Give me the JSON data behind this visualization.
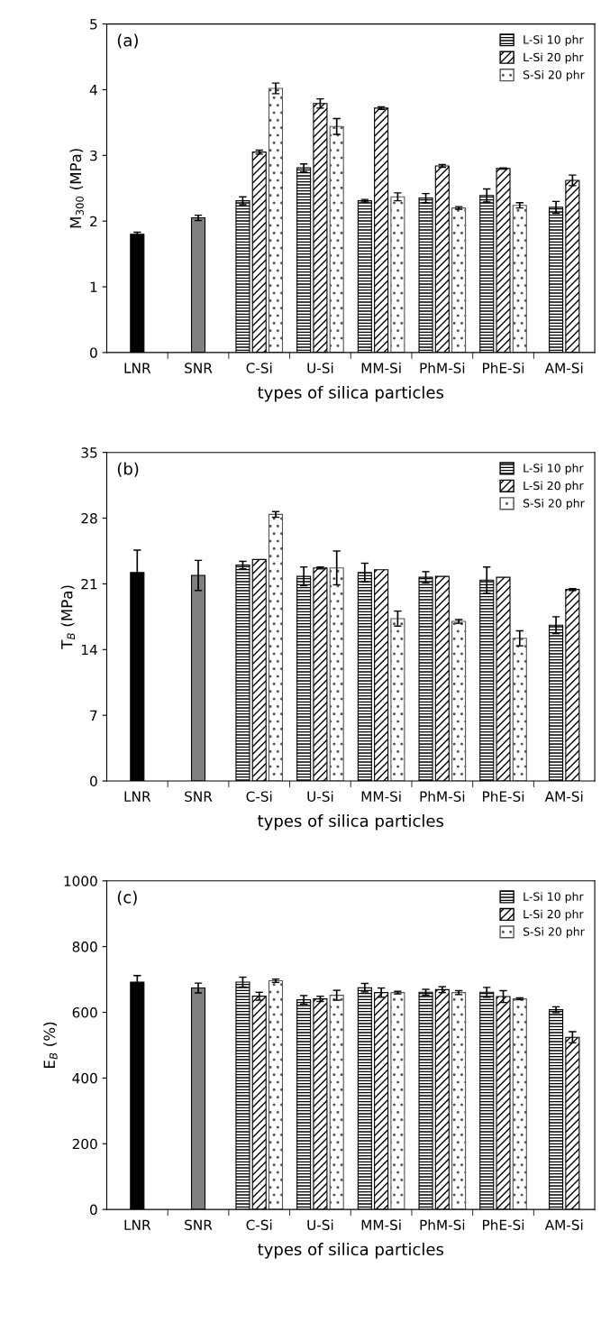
{
  "chart_data": [
    {
      "type": "bar",
      "ylabel": "M$_{300}$ (MPa)",
      "xlabel": "types of silica particles",
      "annotations": [
        "(a)"
      ],
      "categories": [
        "LNR",
        "SNR",
        "C-Si",
        "U-Si",
        "MM-Si",
        "PhM-Si",
        "PhE-Si",
        "AM-Si"
      ],
      "ylim": [
        0,
        5
      ],
      "yticks": [
        0,
        1,
        2,
        3,
        4,
        5
      ],
      "grid": false,
      "legend": "top right",
      "series": [
        {
          "colors": [
            "#000000",
            "#808080",
            null,
            null,
            null,
            null,
            null,
            null
          ],
          "values": [
            1.8,
            2.05,
            null,
            null,
            null,
            null,
            null,
            null
          ],
          "errors": [
            0.03,
            0.04,
            null,
            null,
            null,
            null,
            null,
            null
          ]
        },
        {
          "name": "L-Si 10 phr",
          "color": "#000000",
          "values": [
            null,
            null,
            2.31,
            2.81,
            2.31,
            2.35,
            2.39,
            2.21
          ],
          "errors": [
            null,
            null,
            0.06,
            0.06,
            0.02,
            0.07,
            0.1,
            0.09
          ]
        },
        {
          "name": "L-Si 20 phr",
          "color": "#000000",
          "values": [
            null,
            null,
            3.05,
            3.79,
            3.72,
            2.84,
            2.8,
            2.62
          ],
          "errors": [
            null,
            null,
            0.03,
            0.07,
            0.02,
            0.02,
            0.01,
            0.08
          ]
        },
        {
          "name": "S-Si 20 phr",
          "color": "#555555",
          "values": [
            null,
            null,
            4.02,
            3.44,
            2.37,
            2.2,
            2.24,
            null
          ],
          "errors": [
            null,
            null,
            0.08,
            0.12,
            0.06,
            0.02,
            0.04,
            null
          ]
        }
      ]
    },
    {
      "type": "bar",
      "ylabel": "T$_{B}$ (MPa)",
      "xlabel": "types of silica particles",
      "annotations": [
        "(b)"
      ],
      "categories": [
        "LNR",
        "SNR",
        "C-Si",
        "U-Si",
        "MM-Si",
        "PhM-Si",
        "PhE-Si",
        "AM-Si"
      ],
      "ylim": [
        0,
        35
      ],
      "yticks": [
        0,
        7,
        14,
        21,
        28,
        35
      ],
      "grid": false,
      "legend": "top right",
      "series": [
        {
          "colors": [
            "#000000",
            "#808080",
            null,
            null,
            null,
            null,
            null,
            null
          ],
          "values": [
            22.2,
            21.9,
            null,
            null,
            null,
            null,
            null,
            null
          ],
          "errors": [
            2.4,
            1.6,
            null,
            null,
            null,
            null,
            null,
            null
          ]
        },
        {
          "name": "L-Si 10 phr",
          "color": "#000000",
          "values": [
            null,
            null,
            23.0,
            21.8,
            22.2,
            21.7,
            21.4,
            16.6
          ],
          "errors": [
            null,
            null,
            0.4,
            1.0,
            1.0,
            0.6,
            1.4,
            0.9
          ]
        },
        {
          "name": "L-Si 20 phr",
          "color": "#000000",
          "values": [
            null,
            null,
            23.6,
            22.7,
            22.5,
            21.8,
            21.7,
            20.4
          ],
          "errors": [
            null,
            null,
            null,
            0.1,
            null,
            null,
            null,
            0.1
          ]
        },
        {
          "name": "S-Si 20 phr",
          "color": "#555555",
          "values": [
            null,
            null,
            28.4,
            22.7,
            17.3,
            17.0,
            15.2,
            null
          ],
          "errors": [
            null,
            null,
            0.3,
            1.8,
            0.8,
            0.2,
            0.8,
            null
          ]
        }
      ]
    },
    {
      "type": "bar",
      "ylabel": "E$_{B}$ (%)",
      "xlabel": "types of silica particles",
      "annotations": [
        "(c)"
      ],
      "categories": [
        "LNR",
        "SNR",
        "C-Si",
        "U-Si",
        "MM-Si",
        "PhM-Si",
        "PhE-Si",
        "AM-Si"
      ],
      "ylim": [
        0,
        1000
      ],
      "yticks": [
        0,
        200,
        400,
        600,
        800,
        1000
      ],
      "grid": false,
      "legend": "top right",
      "series": [
        {
          "colors": [
            "#000000",
            "#808080",
            null,
            null,
            null,
            null,
            null,
            null
          ],
          "values": [
            692,
            674,
            null,
            null,
            null,
            null,
            null,
            null
          ],
          "errors": [
            20,
            15,
            null,
            null,
            null,
            null,
            null,
            null
          ]
        },
        {
          "name": "L-Si 10 phr",
          "color": "#000000",
          "values": [
            null,
            null,
            692,
            638,
            675,
            661,
            661,
            608
          ],
          "errors": [
            null,
            null,
            15,
            13,
            13,
            9,
            15,
            9
          ]
        },
        {
          "name": "L-Si 20 phr",
          "color": "#000000",
          "values": [
            null,
            null,
            649,
            641,
            660,
            669,
            648,
            524
          ],
          "errors": [
            null,
            null,
            12,
            8,
            14,
            9,
            18,
            17
          ]
        },
        {
          "name": "S-Si 20 phr",
          "color": "#555555",
          "values": [
            null,
            null,
            696,
            652,
            660,
            660,
            641,
            null
          ],
          "errors": [
            null,
            null,
            5,
            15,
            4,
            6,
            3,
            null
          ]
        }
      ]
    }
  ]
}
